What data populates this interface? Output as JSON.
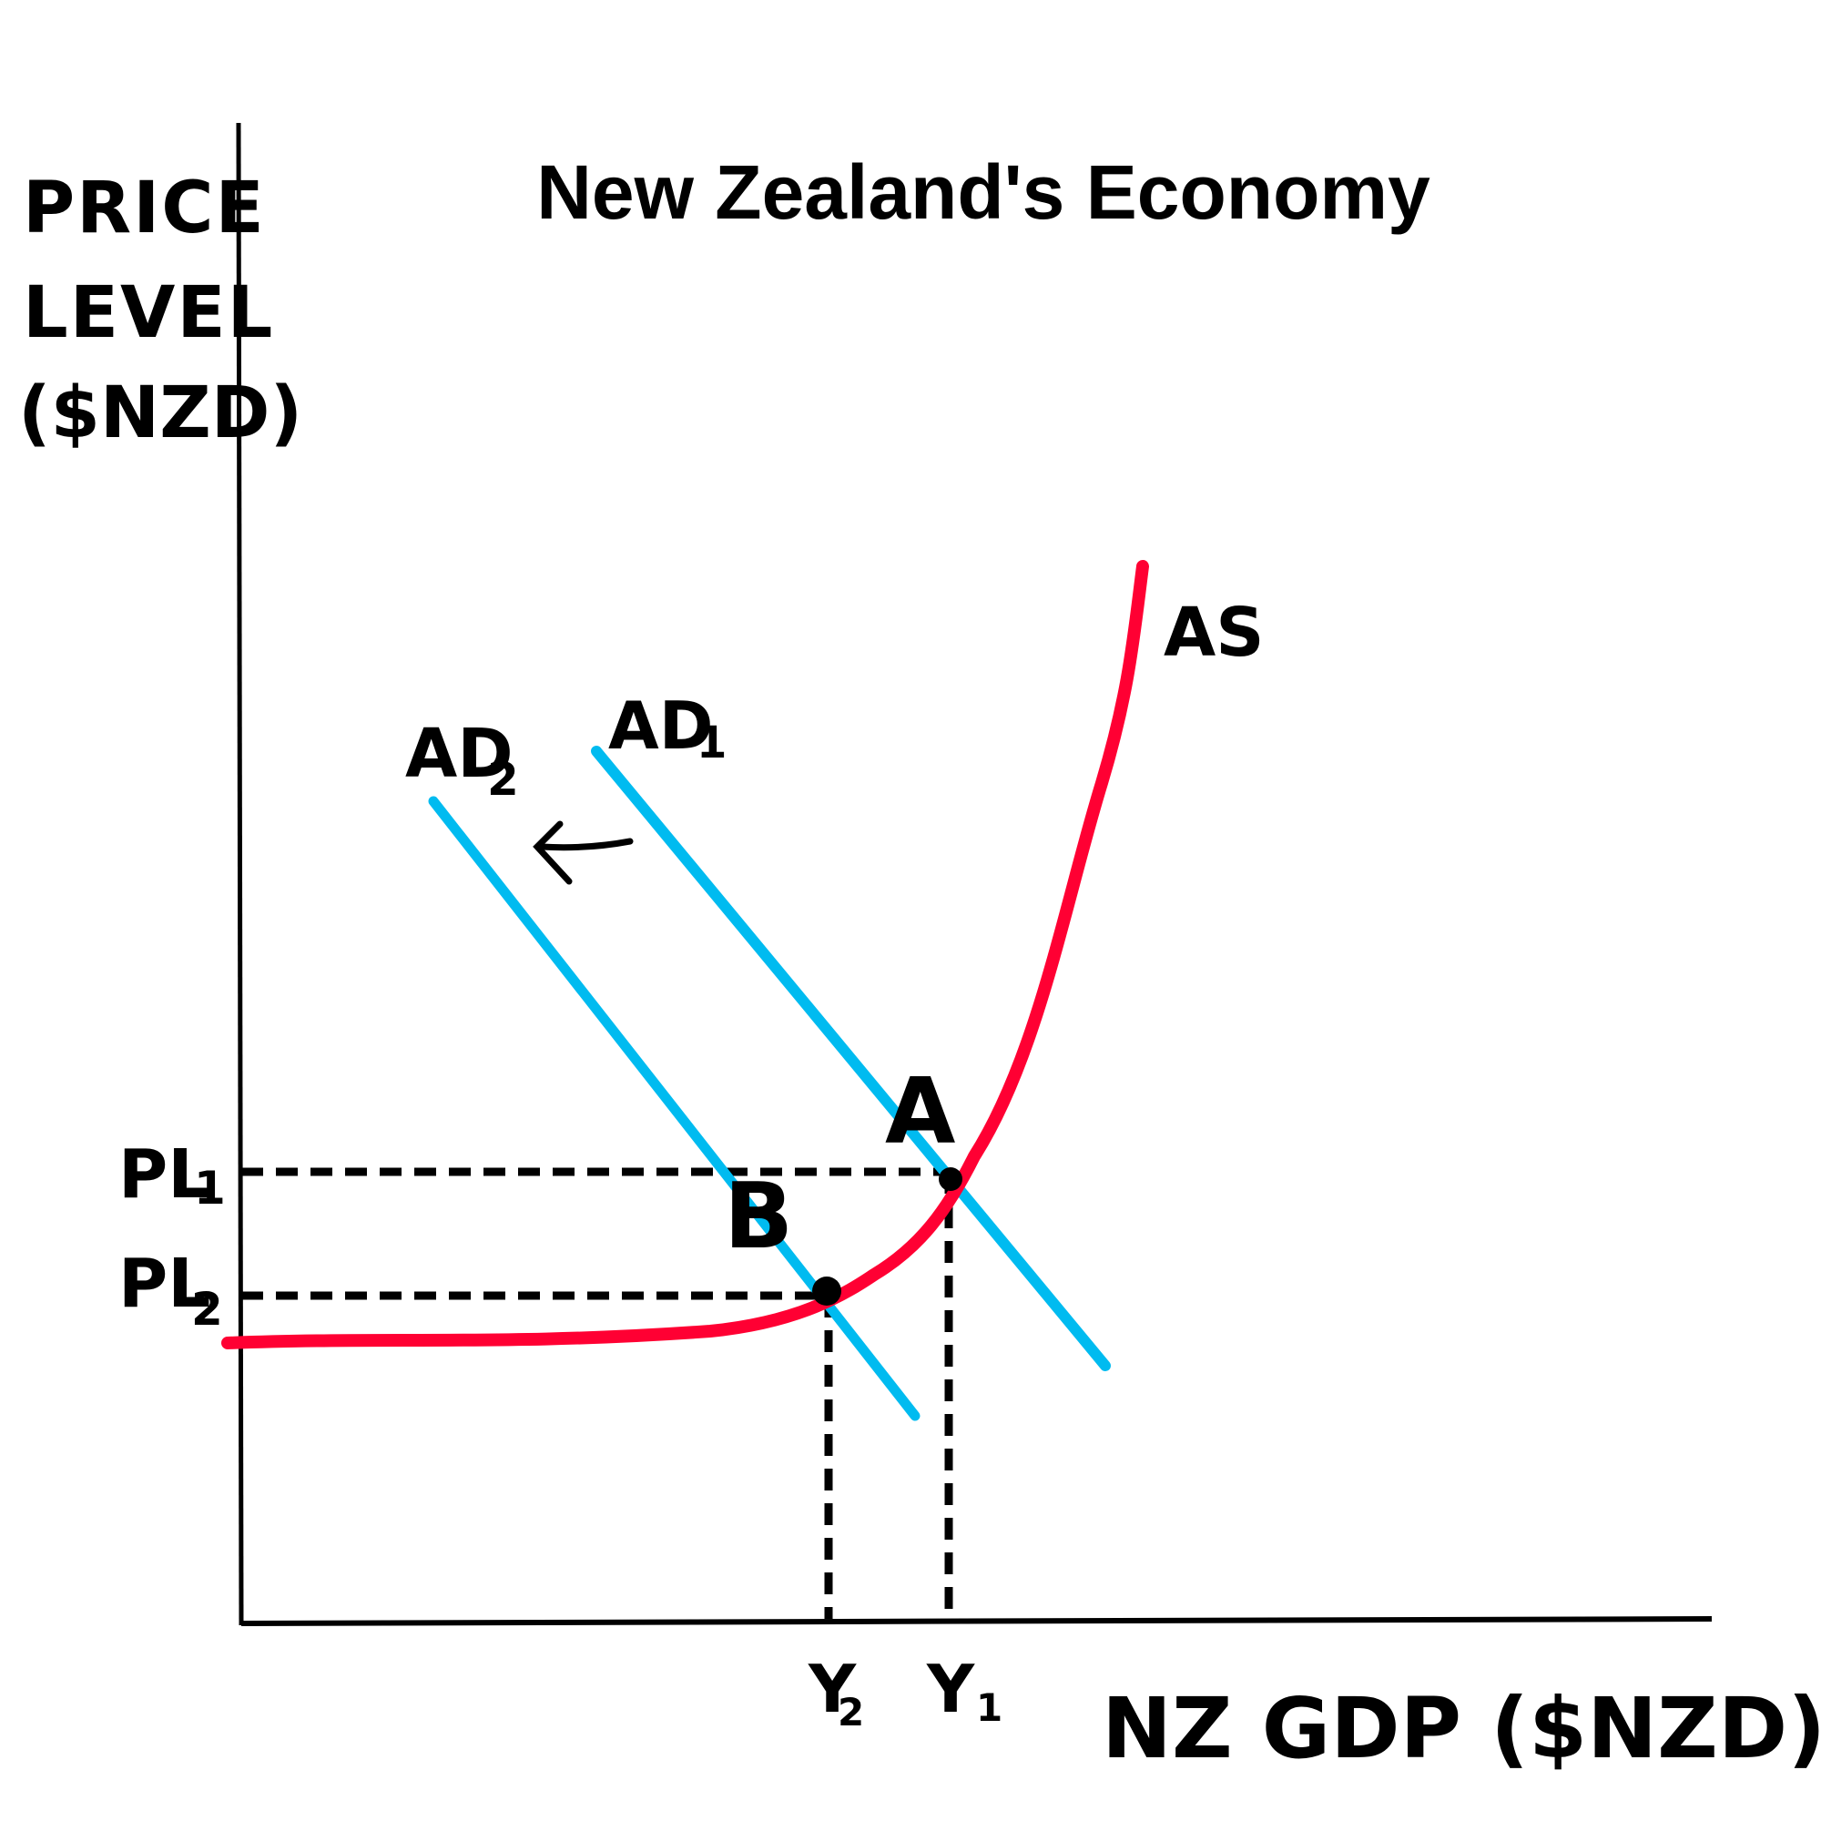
{
  "title": "New Zealand's Economy",
  "y_axis": {
    "line1": "PRICE",
    "line2": "LEVEL",
    "line3": "($NZD)"
  },
  "x_axis": {
    "label": "NZ GDP ($NZD)"
  },
  "curves": {
    "as": {
      "label": "AS",
      "color": "#ff0033"
    },
    "ad1": {
      "label": "AD",
      "sub": "1",
      "color": "#00bbf0"
    },
    "ad2": {
      "label": "AD",
      "sub": "2",
      "color": "#00bbf0"
    }
  },
  "points": {
    "a": "A",
    "b": "B"
  },
  "levels": {
    "pl1": {
      "label": "PL",
      "sub": "1"
    },
    "pl2": {
      "label": "PL",
      "sub": "2"
    }
  },
  "outputs": {
    "y1": {
      "label": "Y",
      "sub": "1"
    },
    "y2": {
      "label": "Y",
      "sub": "2"
    }
  },
  "shift_arrow": "left-arrow-icon"
}
